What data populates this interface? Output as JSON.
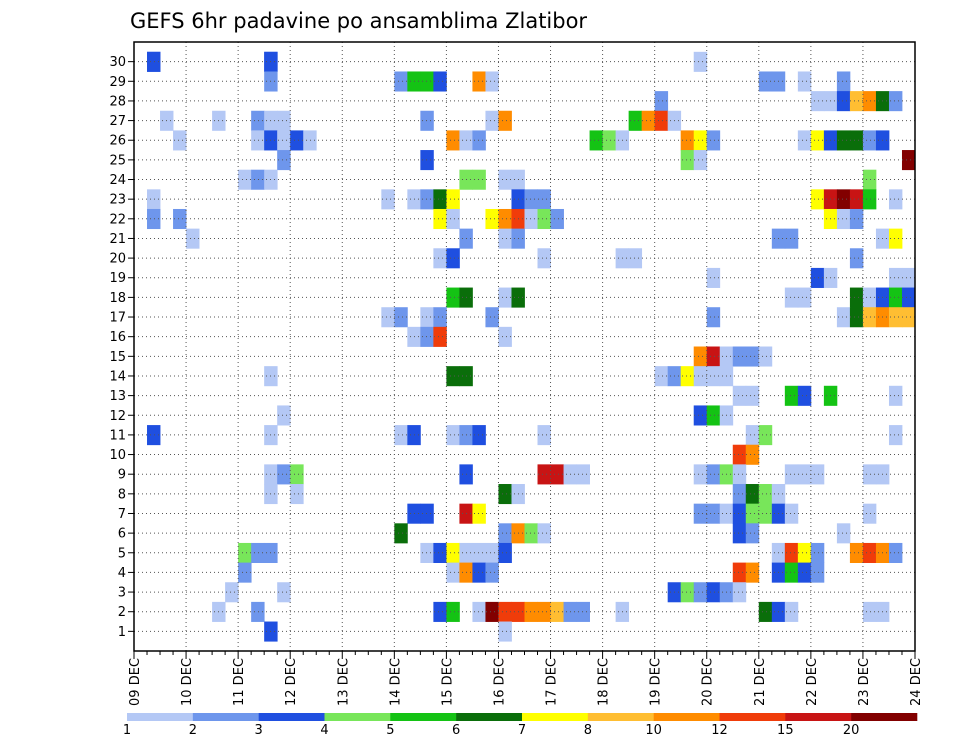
{
  "chart_data": {
    "type": "heatmap",
    "title": "GEFS 6hr padavine po ansamblima Zlatibor",
    "xlabel": "",
    "ylabel": "",
    "x_ticks": [
      "09 DEC",
      "10 DEC",
      "11 DEC",
      "12 DEC",
      "13 DEC",
      "14 DEC",
      "15 DEC",
      "16 DEC",
      "17 DEC",
      "18 DEC",
      "19 DEC",
      "20 DEC",
      "21 DEC",
      "22 DEC",
      "23 DEC",
      "24 DEC"
    ],
    "y_ticks": [
      1,
      2,
      3,
      4,
      5,
      6,
      7,
      8,
      9,
      10,
      11,
      12,
      13,
      14,
      15,
      16,
      17,
      18,
      19,
      20,
      21,
      22,
      23,
      24,
      25,
      26,
      27,
      28,
      29,
      30
    ],
    "grid": true,
    "time_step_hours": 6,
    "colorbar": {
      "labels": [
        "1",
        "2",
        "3",
        "4",
        "5",
        "6",
        "7",
        "8",
        "10",
        "12",
        "15",
        "20"
      ],
      "colors": [
        "#b4c8f5",
        "#6e96ec",
        "#1f4fe0",
        "#78e65a",
        "#14c314",
        "#0a6e0a",
        "#ffff00",
        "#ffbe32",
        "#ff8c00",
        "#f03c0a",
        "#c81414",
        "#820000"
      ]
    },
    "cells": [
      [
        30,
        1,
        0
      ],
      [
        30,
        1,
        1
      ],
      [
        30,
        1,
        2
      ],
      [
        30,
        10,
        0
      ],
      [
        30,
        10,
        1
      ],
      [
        30,
        10,
        2
      ],
      [
        30,
        43,
        0
      ],
      [
        29,
        10,
        1
      ],
      [
        29,
        20,
        1
      ],
      [
        29,
        21,
        4
      ],
      [
        29,
        22,
        4
      ],
      [
        29,
        23,
        2
      ],
      [
        29,
        26,
        8
      ],
      [
        29,
        27,
        0
      ],
      [
        29,
        48,
        1
      ],
      [
        29,
        49,
        1
      ],
      [
        29,
        51,
        0
      ],
      [
        29,
        54,
        1
      ],
      [
        28,
        40,
        1
      ],
      [
        28,
        52,
        0
      ],
      [
        28,
        53,
        0
      ],
      [
        28,
        54,
        2
      ],
      [
        28,
        55,
        7
      ],
      [
        28,
        56,
        8
      ],
      [
        28,
        57,
        5
      ],
      [
        28,
        58,
        1
      ],
      [
        27,
        2,
        0
      ],
      [
        27,
        6,
        0
      ],
      [
        27,
        9,
        1
      ],
      [
        27,
        10,
        0
      ],
      [
        27,
        11,
        0
      ],
      [
        27,
        22,
        1
      ],
      [
        27,
        27,
        0
      ],
      [
        27,
        28,
        8
      ],
      [
        27,
        38,
        4
      ],
      [
        27,
        39,
        8
      ],
      [
        27,
        40,
        9
      ],
      [
        27,
        41,
        0
      ],
      [
        26,
        3,
        0
      ],
      [
        26,
        9,
        0
      ],
      [
        26,
        10,
        2
      ],
      [
        26,
        11,
        0
      ],
      [
        26,
        12,
        2
      ],
      [
        26,
        13,
        0
      ],
      [
        26,
        24,
        8
      ],
      [
        26,
        25,
        0
      ],
      [
        26,
        26,
        1
      ],
      [
        26,
        35,
        4
      ],
      [
        26,
        36,
        3
      ],
      [
        26,
        37,
        0
      ],
      [
        26,
        42,
        8
      ],
      [
        26,
        43,
        6
      ],
      [
        26,
        44,
        1
      ],
      [
        26,
        51,
        0
      ],
      [
        26,
        52,
        6
      ],
      [
        26,
        53,
        2
      ],
      [
        26,
        54,
        5
      ],
      [
        26,
        55,
        5
      ],
      [
        26,
        56,
        1
      ],
      [
        26,
        57,
        2
      ],
      [
        25,
        11,
        1
      ],
      [
        25,
        22,
        2
      ],
      [
        25,
        42,
        3
      ],
      [
        25,
        43,
        0
      ],
      [
        25,
        59,
        11
      ],
      [
        24,
        8,
        0
      ],
      [
        24,
        9,
        1
      ],
      [
        24,
        10,
        0
      ],
      [
        24,
        25,
        3
      ],
      [
        24,
        26,
        3
      ],
      [
        24,
        28,
        0
      ],
      [
        24,
        29,
        0
      ],
      [
        24,
        56,
        3
      ],
      [
        23,
        1,
        0
      ],
      [
        23,
        19,
        0
      ],
      [
        23,
        21,
        0
      ],
      [
        23,
        22,
        1
      ],
      [
        23,
        23,
        5
      ],
      [
        23,
        24,
        6
      ],
      [
        23,
        29,
        2
      ],
      [
        23,
        30,
        1
      ],
      [
        23,
        31,
        1
      ],
      [
        23,
        52,
        6
      ],
      [
        23,
        53,
        10
      ],
      [
        23,
        54,
        11
      ],
      [
        23,
        55,
        10
      ],
      [
        23,
        56,
        4
      ],
      [
        23,
        58,
        0
      ],
      [
        22,
        1,
        1
      ],
      [
        22,
        3,
        1
      ],
      [
        22,
        23,
        6
      ],
      [
        22,
        24,
        0
      ],
      [
        22,
        27,
        6
      ],
      [
        22,
        28,
        8
      ],
      [
        22,
        29,
        9
      ],
      [
        22,
        30,
        0
      ],
      [
        22,
        31,
        3
      ],
      [
        22,
        32,
        1
      ],
      [
        22,
        53,
        6
      ],
      [
        22,
        54,
        0
      ],
      [
        22,
        55,
        1
      ],
      [
        21,
        4,
        0
      ],
      [
        21,
        25,
        1
      ],
      [
        21,
        28,
        0
      ],
      [
        21,
        29,
        1
      ],
      [
        21,
        49,
        1
      ],
      [
        21,
        50,
        1
      ],
      [
        21,
        57,
        0
      ],
      [
        21,
        58,
        6
      ],
      [
        20,
        23,
        0
      ],
      [
        20,
        24,
        2
      ],
      [
        20,
        31,
        0
      ],
      [
        20,
        37,
        0
      ],
      [
        20,
        38,
        0
      ],
      [
        20,
        55,
        1
      ],
      [
        19,
        44,
        0
      ],
      [
        19,
        52,
        2
      ],
      [
        19,
        53,
        0
      ],
      [
        19,
        58,
        0
      ],
      [
        19,
        59,
        0
      ],
      [
        18,
        24,
        4
      ],
      [
        18,
        25,
        5
      ],
      [
        18,
        28,
        0
      ],
      [
        18,
        29,
        5
      ],
      [
        18,
        50,
        0
      ],
      [
        18,
        51,
        0
      ],
      [
        18,
        55,
        5
      ],
      [
        18,
        56,
        0
      ],
      [
        18,
        57,
        2
      ],
      [
        18,
        58,
        4
      ],
      [
        18,
        59,
        2
      ],
      [
        17,
        19,
        0
      ],
      [
        17,
        20,
        1
      ],
      [
        17,
        22,
        0
      ],
      [
        17,
        23,
        1
      ],
      [
        17,
        27,
        1
      ],
      [
        17,
        44,
        1
      ],
      [
        17,
        54,
        0
      ],
      [
        17,
        55,
        5
      ],
      [
        17,
        56,
        7
      ],
      [
        17,
        57,
        8
      ],
      [
        17,
        58,
        7
      ],
      [
        17,
        59,
        7
      ],
      [
        16,
        21,
        0
      ],
      [
        16,
        22,
        1
      ],
      [
        16,
        23,
        9
      ],
      [
        16,
        28,
        0
      ],
      [
        15,
        43,
        8
      ],
      [
        15,
        44,
        10
      ],
      [
        15,
        45,
        0
      ],
      [
        15,
        46,
        1
      ],
      [
        15,
        47,
        1
      ],
      [
        15,
        48,
        0
      ],
      [
        14,
        10,
        0
      ],
      [
        14,
        24,
        5
      ],
      [
        14,
        25,
        5
      ],
      [
        14,
        40,
        0
      ],
      [
        14,
        41,
        1
      ],
      [
        14,
        42,
        6
      ],
      [
        14,
        43,
        0
      ],
      [
        14,
        44,
        0
      ],
      [
        14,
        45,
        0
      ],
      [
        13,
        46,
        0
      ],
      [
        13,
        47,
        0
      ],
      [
        13,
        50,
        4
      ],
      [
        13,
        51,
        2
      ],
      [
        13,
        53,
        4
      ],
      [
        13,
        58,
        0
      ],
      [
        12,
        11,
        0
      ],
      [
        12,
        43,
        2
      ],
      [
        12,
        44,
        4
      ],
      [
        12,
        45,
        0
      ],
      [
        11,
        1,
        2
      ],
      [
        11,
        10,
        0
      ],
      [
        11,
        20,
        0
      ],
      [
        11,
        21,
        2
      ],
      [
        11,
        24,
        0
      ],
      [
        11,
        25,
        1
      ],
      [
        11,
        26,
        2
      ],
      [
        11,
        31,
        0
      ],
      [
        11,
        47,
        0
      ],
      [
        11,
        48,
        3
      ],
      [
        11,
        58,
        0
      ],
      [
        10,
        46,
        9
      ],
      [
        10,
        47,
        8
      ],
      [
        9,
        10,
        0
      ],
      [
        9,
        11,
        1
      ],
      [
        9,
        12,
        3
      ],
      [
        9,
        25,
        2
      ],
      [
        9,
        31,
        10
      ],
      [
        9,
        32,
        10
      ],
      [
        9,
        33,
        0
      ],
      [
        9,
        34,
        0
      ],
      [
        9,
        43,
        0
      ],
      [
        9,
        44,
        1
      ],
      [
        9,
        45,
        3
      ],
      [
        9,
        46,
        0
      ],
      [
        9,
        50,
        0
      ],
      [
        9,
        51,
        0
      ],
      [
        9,
        52,
        0
      ],
      [
        9,
        56,
        0
      ],
      [
        9,
        57,
        0
      ],
      [
        8,
        10,
        0
      ],
      [
        8,
        12,
        0
      ],
      [
        8,
        28,
        5
      ],
      [
        8,
        29,
        0
      ],
      [
        8,
        46,
        1
      ],
      [
        8,
        47,
        5
      ],
      [
        8,
        48,
        3
      ],
      [
        8,
        49,
        0
      ],
      [
        7,
        21,
        2
      ],
      [
        7,
        22,
        2
      ],
      [
        7,
        25,
        10
      ],
      [
        7,
        26,
        6
      ],
      [
        7,
        43,
        1
      ],
      [
        7,
        44,
        1
      ],
      [
        7,
        45,
        0
      ],
      [
        7,
        46,
        2
      ],
      [
        7,
        47,
        3
      ],
      [
        7,
        48,
        3
      ],
      [
        7,
        49,
        2
      ],
      [
        7,
        50,
        0
      ],
      [
        7,
        56,
        0
      ],
      [
        6,
        20,
        5
      ],
      [
        6,
        28,
        1
      ],
      [
        6,
        29,
        8
      ],
      [
        6,
        30,
        3
      ],
      [
        6,
        31,
        0
      ],
      [
        6,
        46,
        2
      ],
      [
        6,
        47,
        1
      ],
      [
        6,
        54,
        0
      ],
      [
        5,
        8,
        3
      ],
      [
        5,
        9,
        1
      ],
      [
        5,
        10,
        1
      ],
      [
        5,
        22,
        0
      ],
      [
        5,
        23,
        2
      ],
      [
        5,
        24,
        6
      ],
      [
        5,
        25,
        0
      ],
      [
        5,
        26,
        0
      ],
      [
        5,
        27,
        0
      ],
      [
        5,
        28,
        2
      ],
      [
        5,
        49,
        0
      ],
      [
        5,
        50,
        9
      ],
      [
        5,
        51,
        6
      ],
      [
        5,
        52,
        1
      ],
      [
        5,
        55,
        8
      ],
      [
        5,
        56,
        9
      ],
      [
        5,
        57,
        8
      ],
      [
        5,
        58,
        1
      ],
      [
        4,
        8,
        1
      ],
      [
        4,
        24,
        0
      ],
      [
        4,
        25,
        8
      ],
      [
        4,
        26,
        2
      ],
      [
        4,
        27,
        1
      ],
      [
        4,
        46,
        9
      ],
      [
        4,
        47,
        8
      ],
      [
        4,
        49,
        2
      ],
      [
        4,
        50,
        4
      ],
      [
        4,
        51,
        2
      ],
      [
        4,
        52,
        1
      ],
      [
        3,
        7,
        0
      ],
      [
        3,
        11,
        0
      ],
      [
        3,
        41,
        2
      ],
      [
        3,
        42,
        3
      ],
      [
        3,
        43,
        1
      ],
      [
        3,
        44,
        2
      ],
      [
        3,
        45,
        1
      ],
      [
        3,
        46,
        0
      ],
      [
        2,
        6,
        0
      ],
      [
        2,
        9,
        1
      ],
      [
        2,
        23,
        2
      ],
      [
        2,
        24,
        4
      ],
      [
        2,
        26,
        0
      ],
      [
        2,
        27,
        11
      ],
      [
        2,
        28,
        9
      ],
      [
        2,
        29,
        9
      ],
      [
        2,
        30,
        8
      ],
      [
        2,
        31,
        8
      ],
      [
        2,
        32,
        7
      ],
      [
        2,
        33,
        1
      ],
      [
        2,
        34,
        1
      ],
      [
        2,
        37,
        0
      ],
      [
        2,
        48,
        5
      ],
      [
        2,
        49,
        2
      ],
      [
        2,
        50,
        0
      ],
      [
        2,
        56,
        0
      ],
      [
        2,
        57,
        0
      ],
      [
        1,
        10,
        2
      ],
      [
        1,
        28,
        0
      ]
    ]
  }
}
